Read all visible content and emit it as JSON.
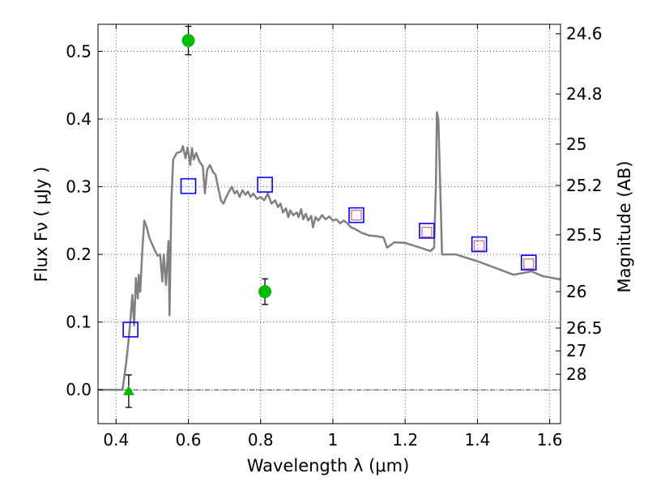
{
  "chart_data": {
    "type": "scatter",
    "xlabel": "Wavelength  λ (μm)",
    "ylabel": "Flux  Fν  ( μJy )",
    "y2label": "Magnitude (AB)",
    "xlim": [
      0.35,
      1.63
    ],
    "ylim": [
      -0.05,
      0.54
    ],
    "grid": true,
    "x_ticks": [
      0.4,
      0.6,
      0.8,
      1.0,
      1.2,
      1.4,
      1.6
    ],
    "x_tick_labels": [
      "0.4",
      "0.6",
      "0.8",
      "1",
      "1.2",
      "1.4",
      "1.6"
    ],
    "y_ticks": [
      0.0,
      0.1,
      0.2,
      0.3,
      0.4,
      0.5
    ],
    "y_tick_labels": [
      "0.0",
      "0.1",
      "0.2",
      "0.3",
      "0.4",
      "0.5"
    ],
    "mag_ticks": [
      {
        "label": "24.6",
        "flux": 0.526
      },
      {
        "label": "24.8",
        "flux": 0.437
      },
      {
        "label": "25",
        "flux": 0.363
      },
      {
        "label": "25.2",
        "flux": 0.302
      },
      {
        "label": "25.5",
        "flux": 0.229
      },
      {
        "label": "26",
        "flux": 0.145
      },
      {
        "label": "26.5",
        "flux": 0.0912
      },
      {
        "label": "27",
        "flux": 0.0575
      },
      {
        "label": "28",
        "flux": 0.0229
      }
    ],
    "series": [
      {
        "kind": "line",
        "color": "#808080",
        "points": [
          [
            0.35,
            0.0
          ],
          [
            0.418,
            0.0
          ],
          [
            0.428,
            0.04
          ],
          [
            0.435,
            0.075
          ],
          [
            0.44,
            0.105
          ],
          [
            0.445,
            0.14
          ],
          [
            0.45,
            0.095
          ],
          [
            0.455,
            0.165
          ],
          [
            0.46,
            0.135
          ],
          [
            0.463,
            0.17
          ],
          [
            0.467,
            0.145
          ],
          [
            0.472,
            0.2
          ],
          [
            0.478,
            0.25
          ],
          [
            0.485,
            0.24
          ],
          [
            0.492,
            0.225
          ],
          [
            0.5,
            0.215
          ],
          [
            0.508,
            0.205
          ],
          [
            0.515,
            0.198
          ],
          [
            0.522,
            0.2
          ],
          [
            0.528,
            0.16
          ],
          [
            0.532,
            0.2
          ],
          [
            0.538,
            0.155
          ],
          [
            0.545,
            0.22
          ],
          [
            0.548,
            0.11
          ],
          [
            0.553,
            0.28
          ],
          [
            0.558,
            0.34
          ],
          [
            0.568,
            0.35
          ],
          [
            0.58,
            0.352
          ],
          [
            0.585,
            0.36
          ],
          [
            0.592,
            0.342
          ],
          [
            0.598,
            0.358
          ],
          [
            0.605,
            0.332
          ],
          [
            0.61,
            0.357
          ],
          [
            0.615,
            0.34
          ],
          [
            0.622,
            0.35
          ],
          [
            0.63,
            0.338
          ],
          [
            0.64,
            0.33
          ],
          [
            0.646,
            0.29
          ],
          [
            0.652,
            0.325
          ],
          [
            0.66,
            0.332
          ],
          [
            0.668,
            0.322
          ],
          [
            0.675,
            0.318
          ],
          [
            0.682,
            0.3
          ],
          [
            0.69,
            0.28
          ],
          [
            0.697,
            0.275
          ],
          [
            0.705,
            0.285
          ],
          [
            0.715,
            0.295
          ],
          [
            0.72,
            0.3
          ],
          [
            0.728,
            0.29
          ],
          [
            0.735,
            0.294
          ],
          [
            0.742,
            0.285
          ],
          [
            0.75,
            0.295
          ],
          [
            0.758,
            0.288
          ],
          [
            0.765,
            0.293
          ],
          [
            0.772,
            0.285
          ],
          [
            0.78,
            0.29
          ],
          [
            0.79,
            0.282
          ],
          [
            0.8,
            0.285
          ],
          [
            0.81,
            0.28
          ],
          [
            0.82,
            0.29
          ],
          [
            0.83,
            0.275
          ],
          [
            0.84,
            0.28
          ],
          [
            0.848,
            0.27
          ],
          [
            0.855,
            0.275
          ],
          [
            0.862,
            0.262
          ],
          [
            0.87,
            0.268
          ],
          [
            0.877,
            0.255
          ],
          [
            0.882,
            0.265
          ],
          [
            0.89,
            0.258
          ],
          [
            0.9,
            0.262
          ],
          [
            0.905,
            0.255
          ],
          [
            0.912,
            0.267
          ],
          [
            0.918,
            0.252
          ],
          [
            0.925,
            0.26
          ],
          [
            0.932,
            0.25
          ],
          [
            0.94,
            0.257
          ],
          [
            0.945,
            0.24
          ],
          [
            0.952,
            0.255
          ],
          [
            0.96,
            0.25
          ],
          [
            0.97,
            0.258
          ],
          [
            0.98,
            0.252
          ],
          [
            0.99,
            0.256
          ],
          [
            1.0,
            0.25
          ],
          [
            1.01,
            0.252
          ],
          [
            1.02,
            0.246
          ],
          [
            1.03,
            0.25
          ],
          [
            1.04,
            0.246
          ],
          [
            1.05,
            0.24
          ],
          [
            1.06,
            0.238
          ],
          [
            1.07,
            0.235
          ],
          [
            1.08,
            0.232
          ],
          [
            1.1,
            0.228
          ],
          [
            1.12,
            0.227
          ],
          [
            1.14,
            0.225
          ],
          [
            1.15,
            0.21
          ],
          [
            1.17,
            0.218
          ],
          [
            1.2,
            0.217
          ],
          [
            1.23,
            0.212
          ],
          [
            1.27,
            0.205
          ],
          [
            1.28,
            0.21
          ],
          [
            1.285,
            0.3
          ],
          [
            1.288,
            0.41
          ],
          [
            1.292,
            0.4
          ],
          [
            1.297,
            0.3
          ],
          [
            1.302,
            0.2
          ],
          [
            1.34,
            0.2
          ],
          [
            1.4,
            0.19
          ],
          [
            1.45,
            0.18
          ],
          [
            1.5,
            0.17
          ],
          [
            1.55,
            0.175
          ],
          [
            1.58,
            0.168
          ],
          [
            1.6,
            0.166
          ],
          [
            1.63,
            0.163
          ]
        ]
      },
      {
        "kind": "open-square",
        "color": "#0000ff",
        "points": [
          [
            0.44,
            0.089
          ],
          [
            0.6,
            0.301
          ],
          [
            0.812,
            0.303
          ],
          [
            1.065,
            0.258
          ],
          [
            1.26,
            0.235
          ],
          [
            1.405,
            0.215
          ],
          [
            1.542,
            0.188
          ]
        ]
      },
      {
        "kind": "small-square",
        "color": "#e0607a",
        "points": [
          [
            1.065,
            0.258
          ],
          [
            1.26,
            0.233
          ],
          [
            1.405,
            0.213
          ],
          [
            1.542,
            0.186
          ]
        ]
      },
      {
        "kind": "point-errorbar",
        "color": "#00bb00",
        "points": [
          {
            "x": 0.6,
            "y": 0.516,
            "err": 0.021
          },
          {
            "x": 0.812,
            "y": 0.145,
            "err": 0.019
          }
        ]
      },
      {
        "kind": "triangle-errorbar",
        "color": "#00bb00",
        "points": [
          {
            "x": 0.435,
            "y": -0.002,
            "err": 0.024
          }
        ]
      }
    ]
  }
}
